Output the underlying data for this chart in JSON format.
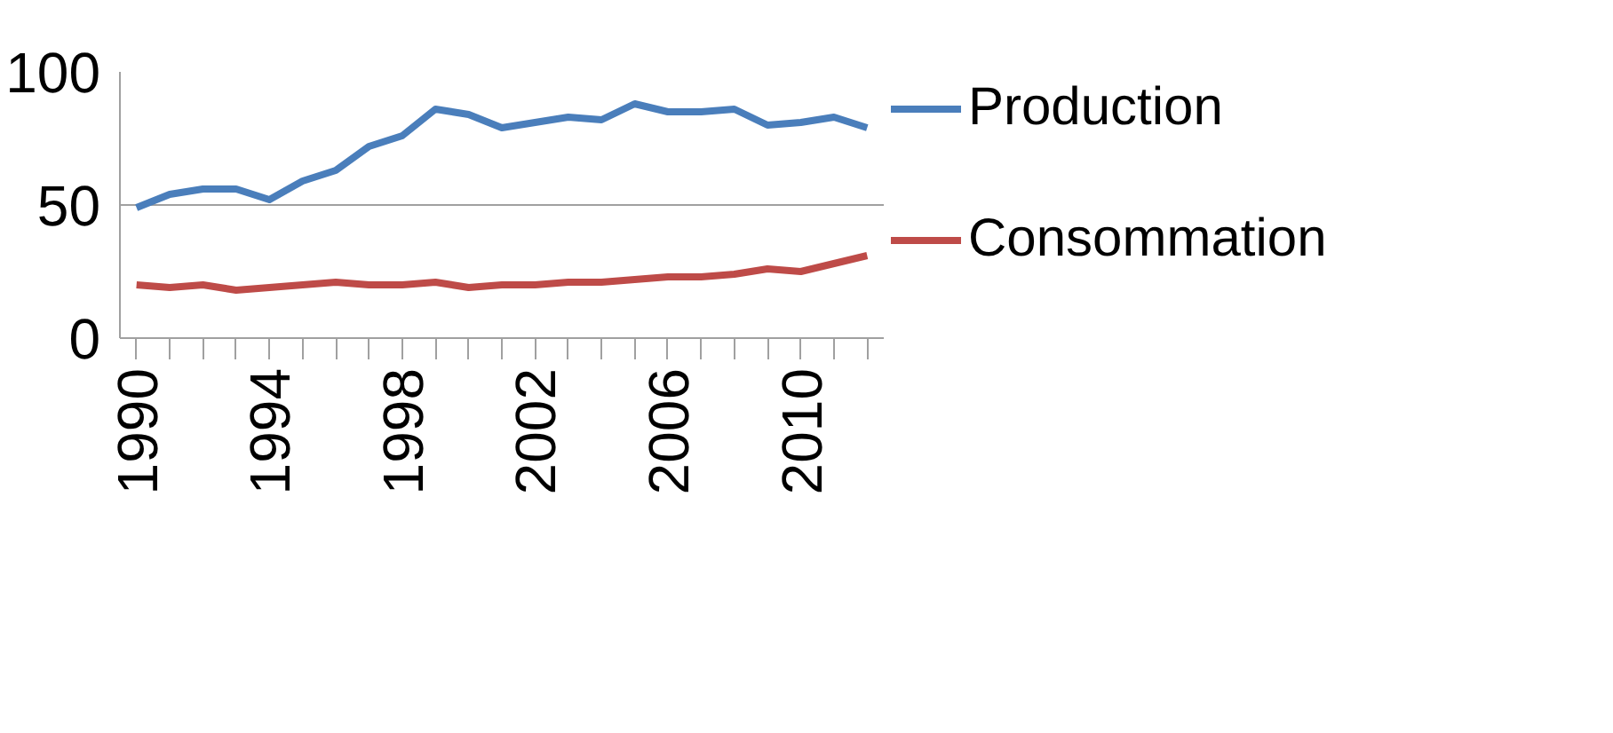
{
  "chart_data": {
    "type": "line",
    "categories": [
      "1990",
      null,
      null,
      null,
      "1994",
      null,
      null,
      null,
      "1998",
      null,
      null,
      null,
      "2002",
      null,
      null,
      null,
      "2006",
      null,
      null,
      null,
      "2010",
      null,
      null
    ],
    "series": [
      {
        "name": "Production",
        "color": "#4a7ebb",
        "values": [
          49,
          54,
          56,
          56,
          52,
          59,
          63,
          72,
          76,
          86,
          84,
          79,
          81,
          83,
          82,
          88,
          85,
          85,
          86,
          80,
          81,
          83,
          79
        ]
      },
      {
        "name": "Consommation",
        "color": "#be4b48",
        "values": [
          20,
          19,
          20,
          18,
          19,
          20,
          21,
          20,
          20,
          21,
          19,
          20,
          20,
          21,
          21,
          22,
          23,
          23,
          24,
          26,
          25,
          28,
          31
        ]
      }
    ],
    "ylim": [
      0,
      100
    ],
    "yticks": [
      0,
      50,
      100
    ],
    "grid": "y",
    "legend": "right",
    "marker": "none",
    "line_style": "solid"
  }
}
